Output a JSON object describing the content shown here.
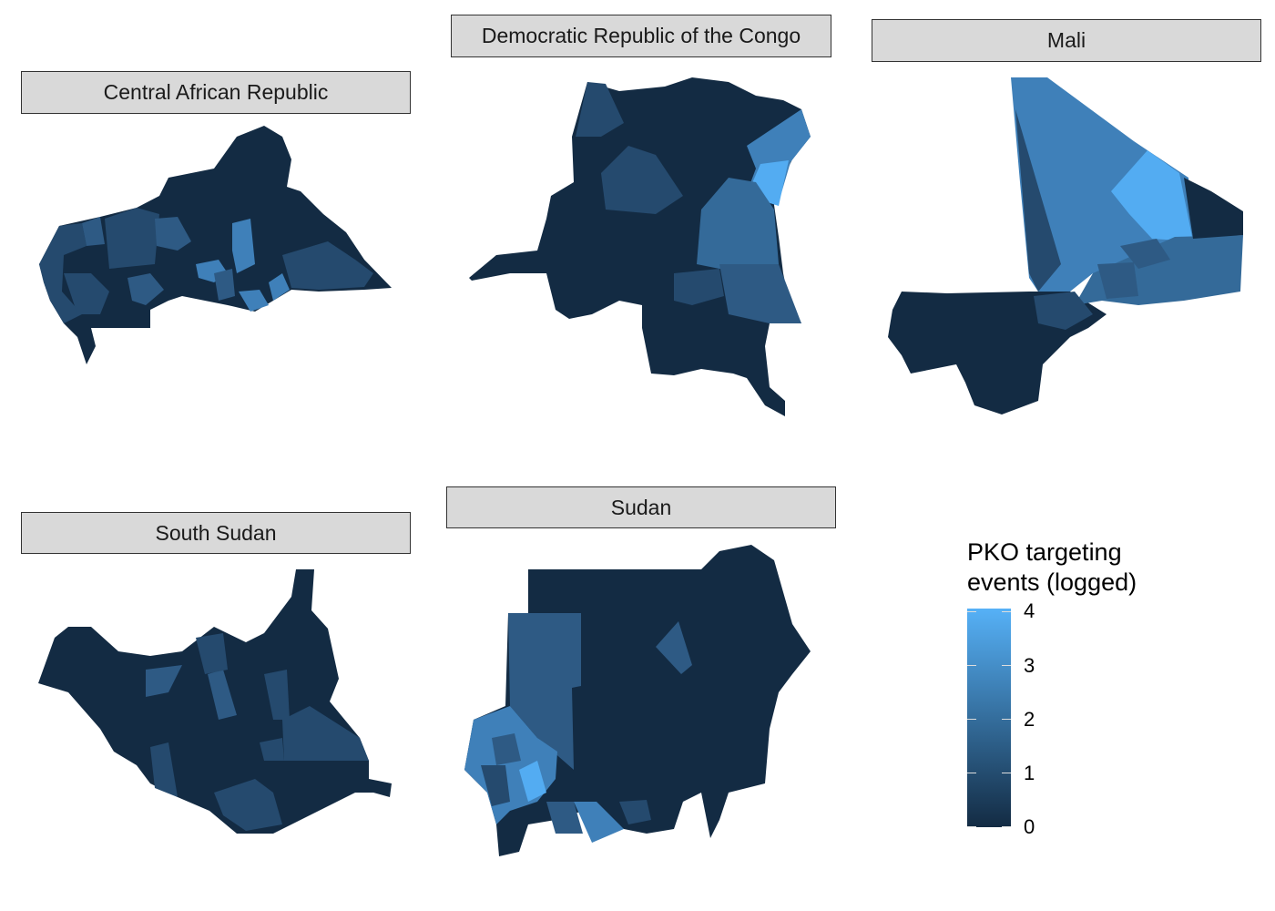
{
  "facets": [
    {
      "title": "Central African Republic"
    },
    {
      "title": "Democratic Republic of the Congo"
    },
    {
      "title": "Mali"
    },
    {
      "title": "South Sudan"
    },
    {
      "title": "Sudan"
    }
  ],
  "legend": {
    "title_line1": "PKO targeting",
    "title_line2": "events (logged)",
    "ticks": [
      "0",
      "1",
      "2",
      "3",
      "4"
    ],
    "color_low": "#132B43",
    "color_high": "#56B1F7",
    "range": [
      0,
      4
    ]
  }
}
